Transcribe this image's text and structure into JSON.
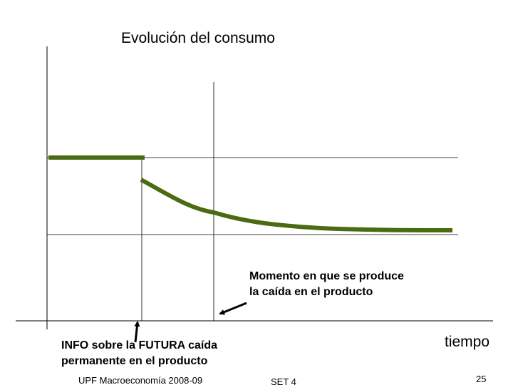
{
  "title": "Evolución del consumo",
  "annotations": {
    "fall_moment": [
      "Momento en que se produce",
      "la caída en el producto"
    ],
    "info": [
      "INFO sobre la FUTURA caída",
      "permanente en el producto"
    ]
  },
  "x_axis_label": "tiempo",
  "footer": {
    "left": "UPF Macroeconomía 2008-09",
    "center": "SET 4",
    "page": "25"
  }
}
